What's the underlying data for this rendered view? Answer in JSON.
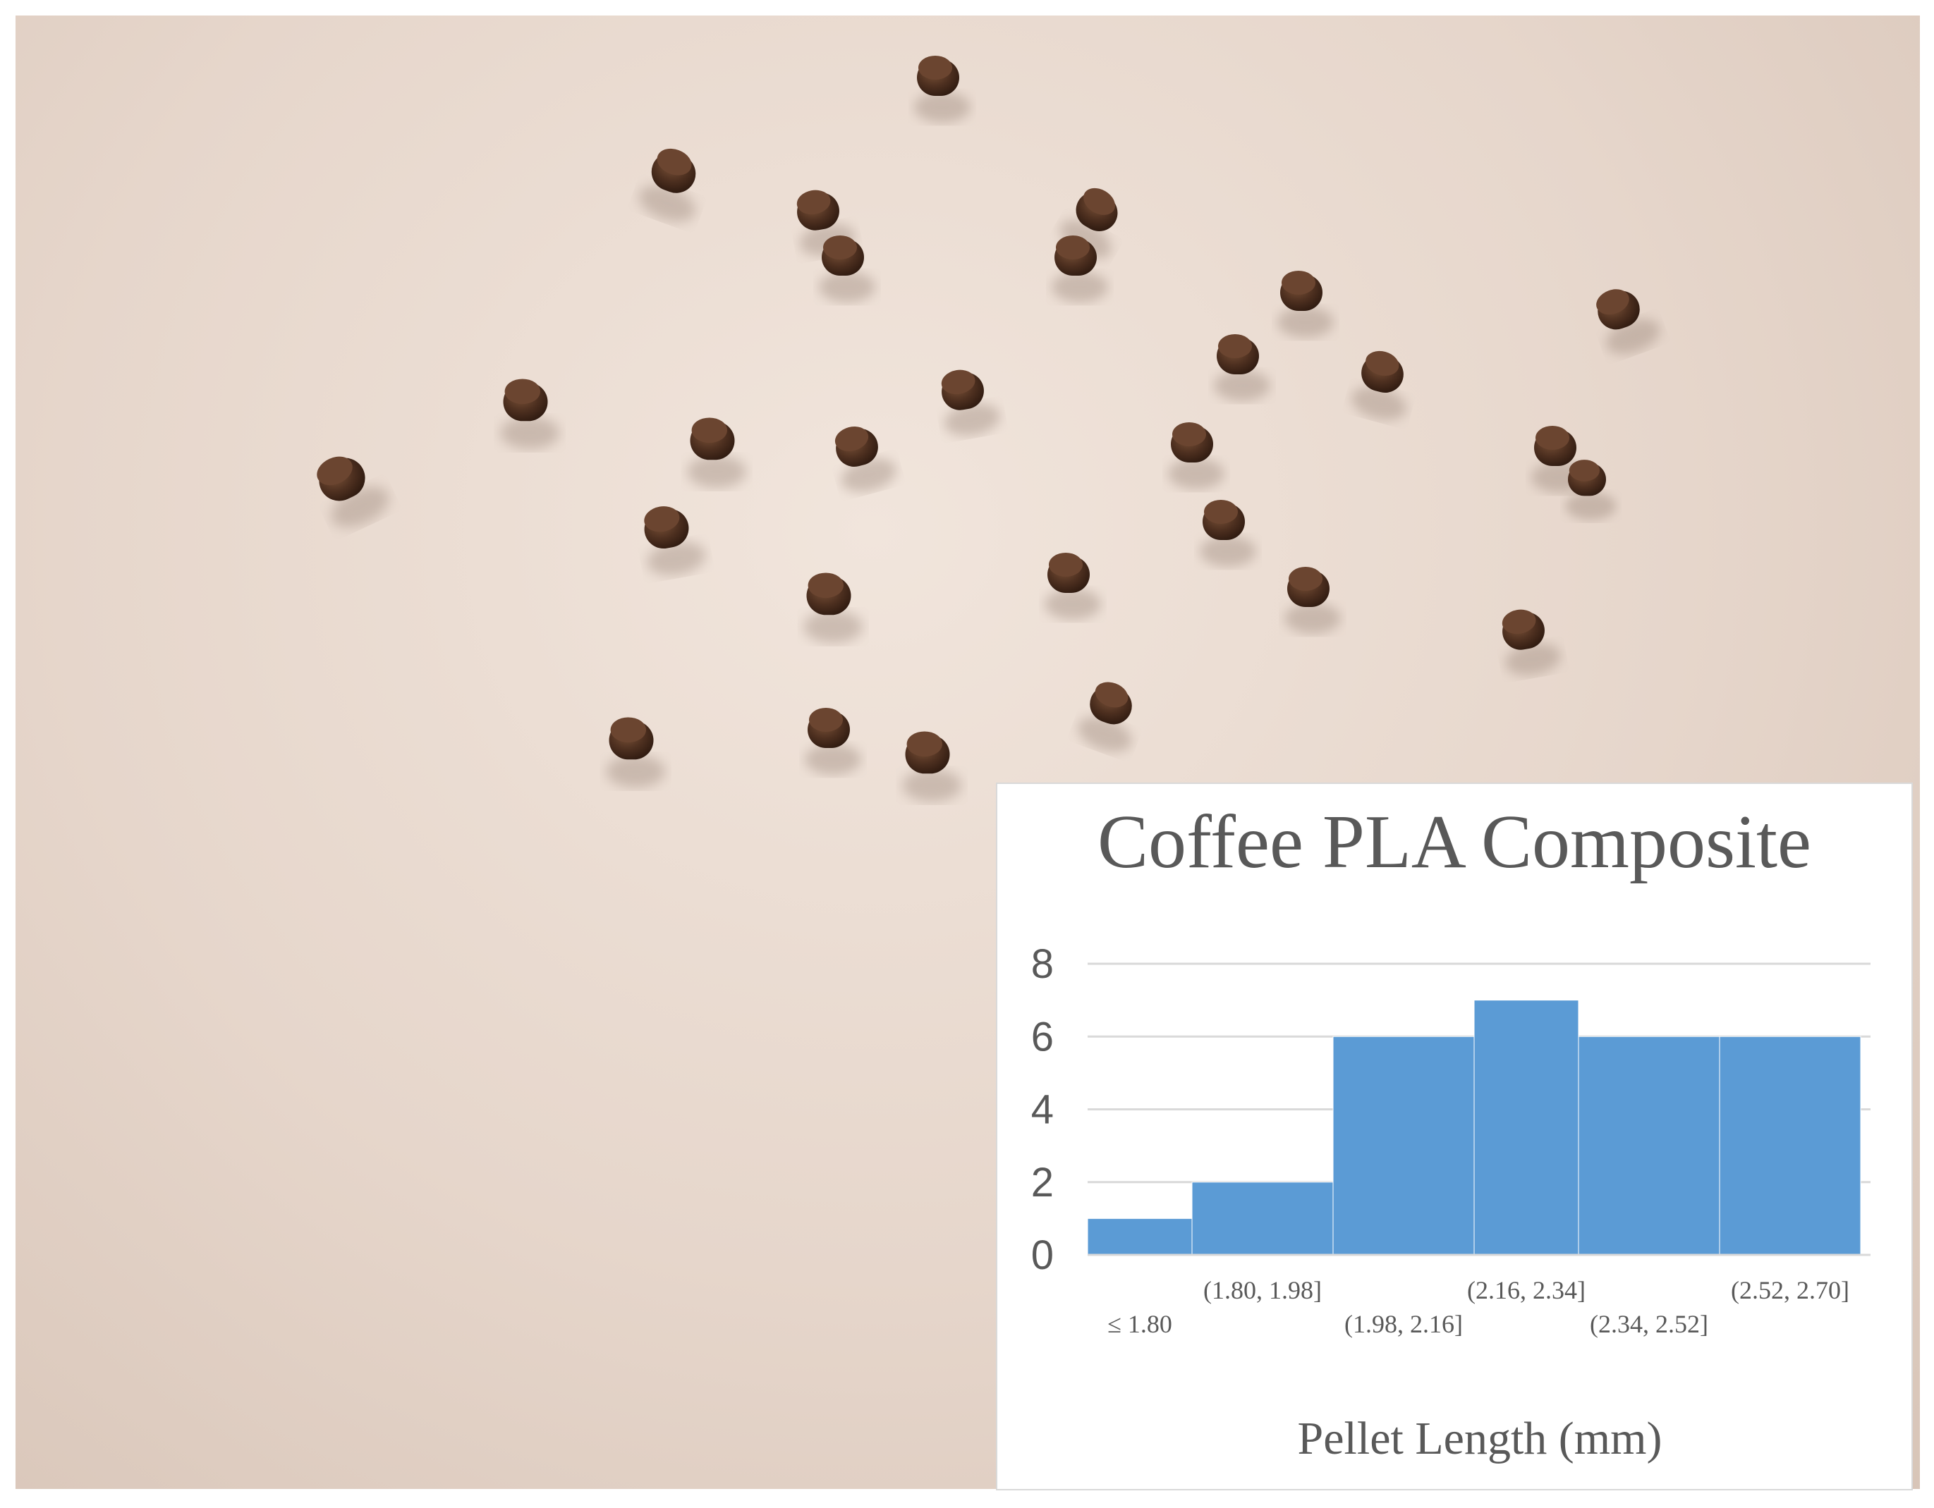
{
  "photo": {
    "subject": "coffee-pla-pellets"
  },
  "chart_data": {
    "type": "bar",
    "title": "Coffee PLA Composite",
    "xlabel": "Pellet Length (mm)",
    "ylabel": "",
    "categories": [
      "≤ 1.80",
      "(1.80, 1.98]",
      "(1.98, 2.16]",
      "(2.16, 2.34]",
      "(2.34, 2.52]",
      "(2.52, 2.70]"
    ],
    "values": [
      1,
      2,
      6,
      7,
      6,
      6
    ],
    "ylim": [
      0,
      8
    ],
    "yticks": [
      "0",
      "2",
      "4",
      "6",
      "8"
    ],
    "grid": true,
    "legend": "none",
    "bar_color": "#5b9bd5",
    "grid_color": "#d9d9d9",
    "text_color": "#595959"
  }
}
